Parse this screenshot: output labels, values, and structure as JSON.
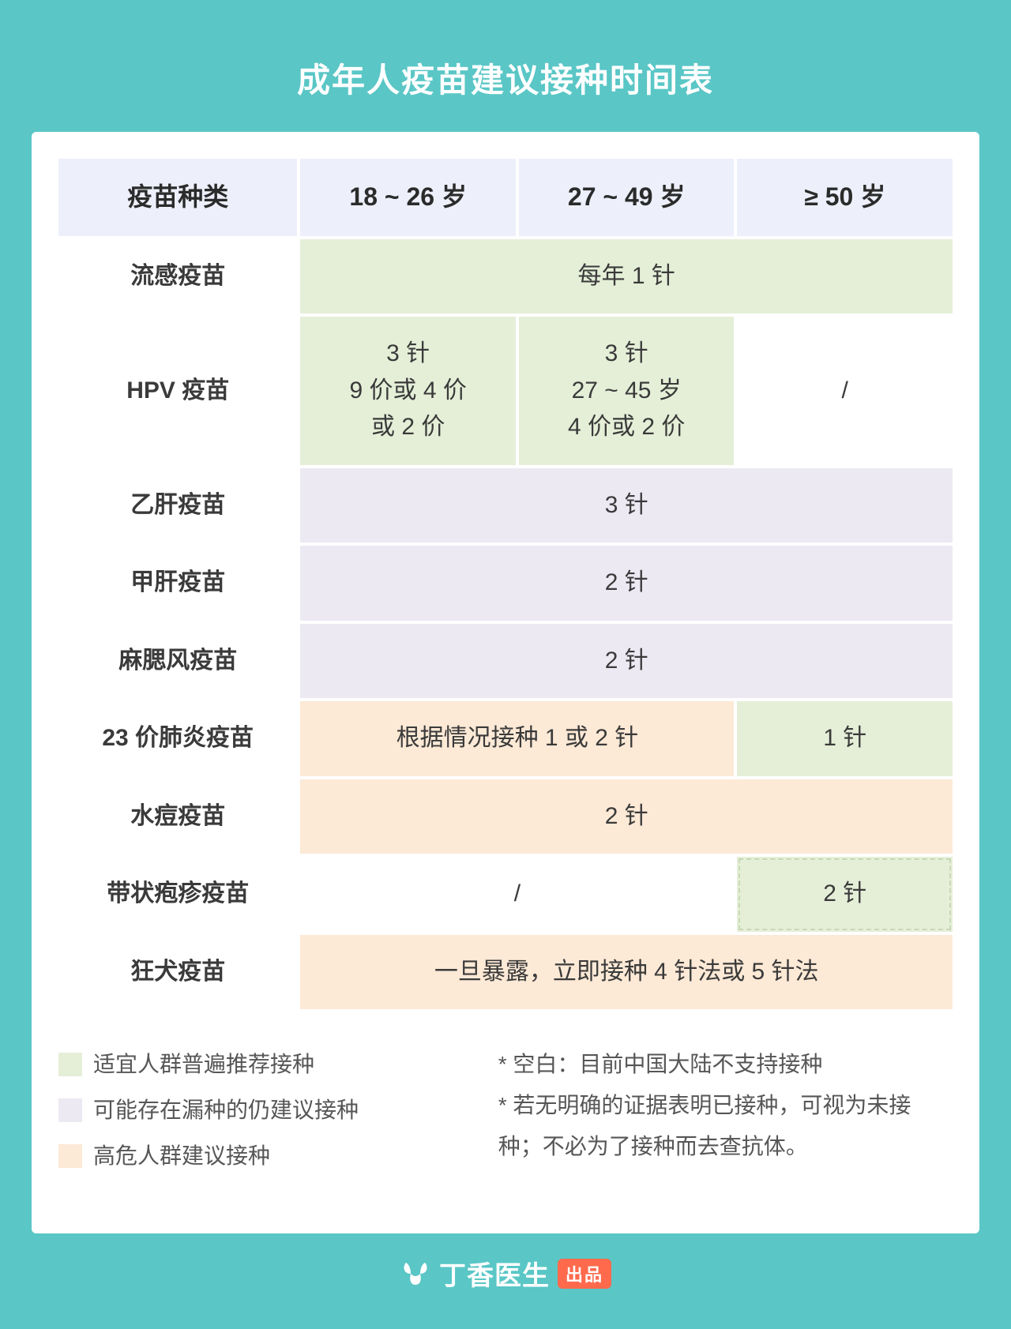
{
  "title": "成年人疫苗建议接种时间表",
  "table": {
    "type": "table",
    "header_bg": "#edf0fb",
    "colors": {
      "green": "#e5efd8",
      "purple": "#ece9f3",
      "orange": "#fce9d6",
      "white": "#ffffff",
      "text": "#3a3a3a"
    },
    "columns": [
      "疫苗种类",
      "18 ~ 26 岁",
      "27 ~ 49 岁",
      "≥ 50 岁"
    ],
    "rows": {
      "flu": {
        "label": "流感疫苗",
        "cells": [
          {
            "text": "每年 1 针",
            "span": 3,
            "color": "green"
          }
        ]
      },
      "hpv": {
        "label": "HPV 疫苗",
        "cells": [
          {
            "text": "3 针\n9 价或 4 价\n或 2 价",
            "span": 1,
            "color": "green"
          },
          {
            "text": "3 针\n27 ~ 45 岁\n4 价或 2 价",
            "span": 1,
            "color": "green"
          },
          {
            "text": "/",
            "span": 1,
            "color": "white"
          }
        ]
      },
      "hepb": {
        "label": "乙肝疫苗",
        "cells": [
          {
            "text": "3 针",
            "span": 3,
            "color": "purple"
          }
        ]
      },
      "hepa": {
        "label": "甲肝疫苗",
        "cells": [
          {
            "text": "2 针",
            "span": 3,
            "color": "purple"
          }
        ]
      },
      "mmr": {
        "label": "麻腮风疫苗",
        "cells": [
          {
            "text": "2 针",
            "span": 3,
            "color": "purple"
          }
        ]
      },
      "pneum23": {
        "label": "23 价肺炎疫苗",
        "cells": [
          {
            "text": "根据情况接种 1 或 2 针",
            "span": 2,
            "color": "orange"
          },
          {
            "text": "1 针",
            "span": 1,
            "color": "green"
          }
        ]
      },
      "varicella": {
        "label": "水痘疫苗",
        "cells": [
          {
            "text": "2 针",
            "span": 3,
            "color": "orange"
          }
        ]
      },
      "shingles": {
        "label": "带状疱疹疫苗",
        "cells": [
          {
            "text": "/",
            "span": 2,
            "color": "white"
          },
          {
            "text": "2 针",
            "span": 1,
            "color": "green",
            "dashed": true
          }
        ]
      },
      "rabies": {
        "label": "狂犬疫苗",
        "cells": [
          {
            "text": "一旦暴露，立即接种 4 针法或 5 针法",
            "span": 3,
            "color": "orange"
          }
        ]
      }
    }
  },
  "legend": {
    "items": [
      {
        "color": "#e5efd8",
        "text": "适宜人群普遍推荐接种"
      },
      {
        "color": "#ece9f3",
        "text": "可能存在漏种的仍建议接种"
      },
      {
        "color": "#fce9d6",
        "text": "高危人群建议接种"
      }
    ],
    "notes": [
      "* 空白：目前中国大陆不支持接种",
      "* 若无明确的证据表明已接种，可视为未接种；不必为了接种而去查抗体。"
    ]
  },
  "footer": {
    "brand": "丁香医生",
    "badge": "出品"
  }
}
